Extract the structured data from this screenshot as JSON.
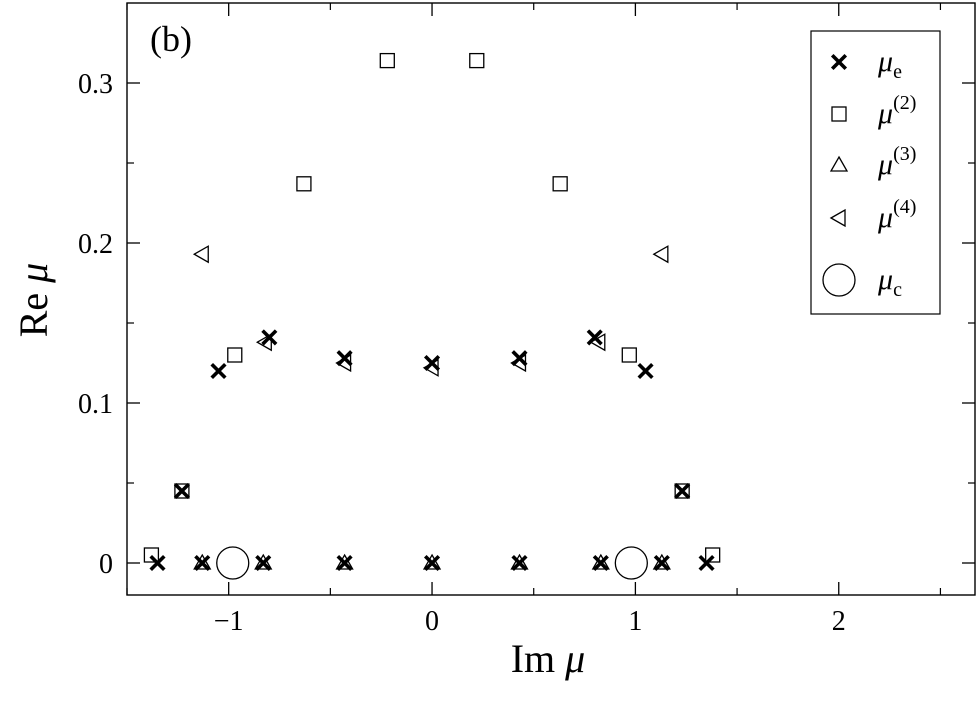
{
  "chart_data": {
    "type": "scatter",
    "panel_label": "(b)",
    "xlabel": "Im μ",
    "ylabel": "Re μ",
    "xlim": [
      -1.5,
      2.67
    ],
    "ylim": [
      -0.02,
      0.35
    ],
    "x_ticks": [
      {
        "value": -1,
        "label": "−1"
      },
      {
        "value": 0,
        "label": "0"
      },
      {
        "value": 1,
        "label": "1"
      },
      {
        "value": 2,
        "label": "2"
      }
    ],
    "y_ticks": [
      {
        "value": 0,
        "label": "0"
      },
      {
        "value": 0.1,
        "label": "0.1"
      },
      {
        "value": 0.2,
        "label": "0.2"
      },
      {
        "value": 0.3,
        "label": "0.3"
      }
    ],
    "legend_position": "top-right",
    "series": [
      {
        "name": "μe",
        "label_base": "μ",
        "label_sub": "e",
        "label_sup": "",
        "marker": "cross",
        "points": [
          [
            -1.35,
            0.0
          ],
          [
            -1.23,
            0.045
          ],
          [
            -1.13,
            0.0
          ],
          [
            -1.05,
            0.12
          ],
          [
            -0.83,
            0.0
          ],
          [
            -0.8,
            0.141
          ],
          [
            -0.43,
            0.0
          ],
          [
            -0.43,
            0.128
          ],
          [
            0.0,
            0.0
          ],
          [
            0.0,
            0.125
          ],
          [
            0.43,
            0.0
          ],
          [
            0.43,
            0.128
          ],
          [
            0.8,
            0.141
          ],
          [
            0.83,
            0.0
          ],
          [
            1.05,
            0.12
          ],
          [
            1.13,
            0.0
          ],
          [
            1.23,
            0.045
          ],
          [
            1.35,
            0.0
          ]
        ]
      },
      {
        "name": "μ(2)",
        "label_base": "μ",
        "label_sub": "",
        "label_sup": "(2)",
        "marker": "square",
        "points": [
          [
            -1.38,
            0.005
          ],
          [
            -1.23,
            0.045
          ],
          [
            -0.97,
            0.13
          ],
          [
            -0.63,
            0.237
          ],
          [
            -0.22,
            0.314
          ],
          [
            0.22,
            0.314
          ],
          [
            0.63,
            0.237
          ],
          [
            0.97,
            0.13
          ],
          [
            1.23,
            0.045
          ],
          [
            1.38,
            0.005
          ]
        ]
      },
      {
        "name": "μ(3)",
        "label_base": "μ",
        "label_sub": "",
        "label_sup": "(3)",
        "marker": "triangle",
        "points": [
          [
            -1.13,
            0.0
          ],
          [
            -0.83,
            0.0
          ],
          [
            -0.43,
            0.0
          ],
          [
            0.0,
            0.0
          ],
          [
            0.43,
            0.0
          ],
          [
            0.83,
            0.0
          ],
          [
            1.13,
            0.0
          ]
        ]
      },
      {
        "name": "μ(4)",
        "label_base": "μ",
        "label_sub": "",
        "label_sup": "(4)",
        "marker": "left-triangle",
        "points": [
          [
            -1.13,
            0.193
          ],
          [
            -0.82,
            0.138
          ],
          [
            -0.43,
            0.125
          ],
          [
            0.0,
            0.122
          ],
          [
            0.43,
            0.125
          ],
          [
            0.82,
            0.138
          ],
          [
            1.13,
            0.193
          ]
        ]
      },
      {
        "name": "μc",
        "label_base": "μ",
        "label_sub": "c",
        "label_sup": "",
        "marker": "circle",
        "points": [
          [
            -0.98,
            0.0
          ],
          [
            0.98,
            0.0
          ]
        ]
      }
    ]
  }
}
